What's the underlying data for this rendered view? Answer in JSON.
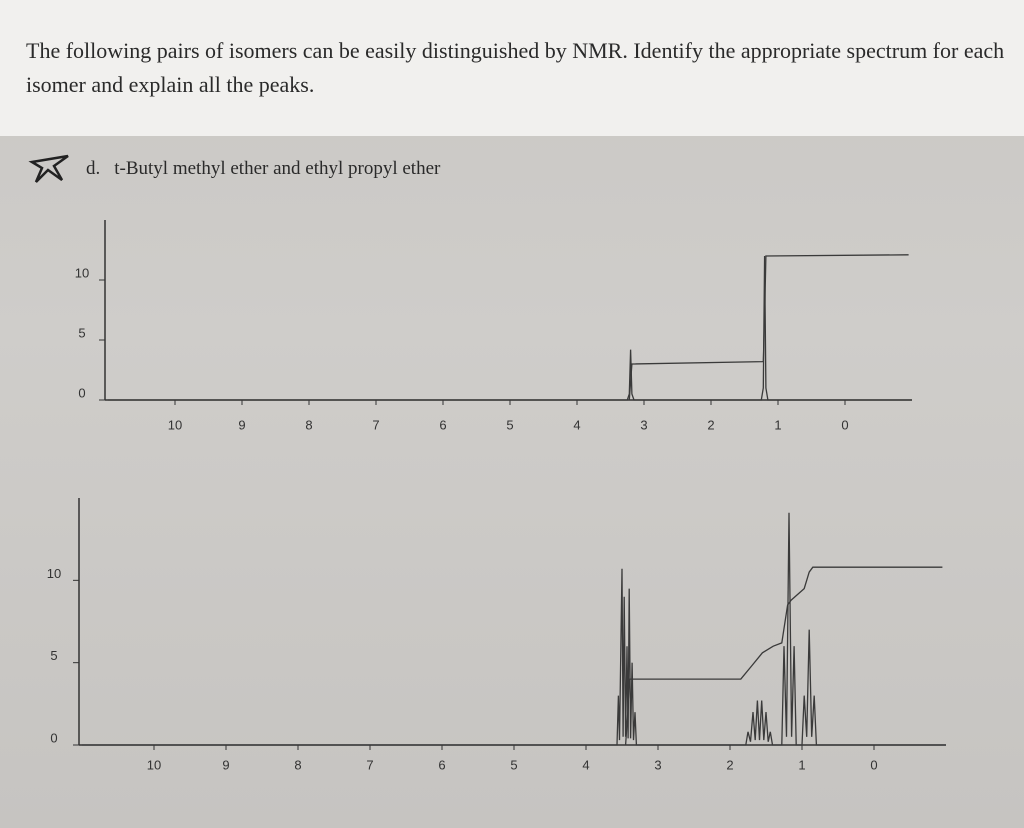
{
  "question": "The following pairs of isomers can be easily distinguished by NMR. Identify the appropriate spectrum for each isomer and explain all the peaks.",
  "item": {
    "marker": "d.",
    "text": "t-Butyl methyl ether and ethyl propyl ether"
  },
  "chart_data": [
    {
      "type": "line",
      "xlim": [
        11,
        -1
      ],
      "ylim": [
        0,
        15
      ],
      "xticks": [
        10,
        9,
        8,
        7,
        6,
        5,
        4,
        3,
        2,
        1,
        0
      ],
      "yticks": [
        0,
        5,
        10
      ],
      "series": [
        {
          "color": "#3a3a3a",
          "x": [
            11,
            3.25,
            3.22,
            3.2,
            3.18,
            3.15,
            1.25,
            1.22,
            1.2,
            1.18,
            1.15,
            -1
          ],
          "values": [
            0,
            0,
            0.5,
            4.2,
            0.5,
            0,
            0,
            1,
            12,
            1,
            0,
            0
          ]
        },
        {
          "color": "#3a3a3a",
          "x": [
            3.22,
            3.2,
            3.18,
            1.22,
            1.2,
            1.18,
            -0.95
          ],
          "values": [
            0,
            1.5,
            3,
            3.2,
            7,
            12,
            12.1
          ]
        }
      ]
    },
    {
      "type": "line",
      "xlim": [
        11,
        -1
      ],
      "ylim": [
        0,
        15
      ],
      "xticks": [
        10,
        9,
        8,
        7,
        6,
        5,
        4,
        3,
        2,
        1,
        0
      ],
      "yticks": [
        0,
        5,
        10
      ],
      "series": [
        {
          "color": "#3a3a3a",
          "x": [
            11,
            3.57,
            3.55,
            3.535,
            3.5,
            3.485,
            3.47,
            3.45,
            3.43,
            3.415,
            3.4,
            3.38,
            3.36,
            3.34,
            3.32,
            3.3,
            1.78,
            1.75,
            1.715,
            1.68,
            1.65,
            1.62,
            1.59,
            1.56,
            1.53,
            1.5,
            1.47,
            1.44,
            1.41,
            1.28,
            1.25,
            1.215,
            1.18,
            1.145,
            1.11,
            1.08,
            1.0,
            0.97,
            0.935,
            0.9,
            0.865,
            0.83,
            0.8,
            -1
          ],
          "values": [
            0,
            0,
            3,
            0.3,
            10.7,
            0.5,
            9,
            0.5,
            6,
            0.4,
            9.5,
            0.4,
            5,
            0.3,
            2,
            0,
            0,
            0.8,
            0.2,
            2,
            0.3,
            2.7,
            0.3,
            2.7,
            0.3,
            2,
            0.2,
            0.8,
            0,
            0,
            6,
            0.5,
            14.1,
            0.5,
            6,
            0,
            0,
            3,
            0.5,
            7,
            0.5,
            3,
            0,
            0
          ]
        },
        {
          "color": "#3a3a3a",
          "x": [
            3.45,
            3.42,
            3.4,
            3.3,
            1.85,
            1.7,
            1.55,
            1.4,
            1.28,
            1.2,
            1.15,
            0.97,
            0.9,
            0.85,
            -0.95
          ],
          "values": [
            0,
            2,
            4,
            4,
            4,
            4.8,
            5.6,
            6,
            6.2,
            8.5,
            8.8,
            9.5,
            10.5,
            10.8,
            10.8
          ]
        }
      ]
    }
  ]
}
